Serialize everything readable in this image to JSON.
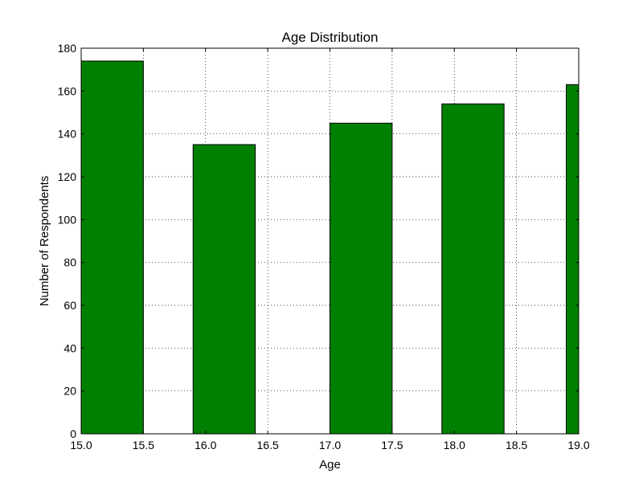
{
  "chart_data": {
    "type": "bar",
    "title": "Age Distribution",
    "xlabel": "Age",
    "ylabel": "Number of Respondents",
    "bar_width": 0.5,
    "series": [
      {
        "x": [
          15.0,
          15.9,
          17.0,
          17.9,
          18.9
        ],
        "values": [
          174,
          135,
          145,
          154,
          163
        ]
      }
    ],
    "xlim": [
      15.0,
      19.0
    ],
    "ylim": [
      0,
      180
    ],
    "xticks": [
      "15.0",
      "15.5",
      "16.0",
      "16.5",
      "17.0",
      "17.5",
      "18.0",
      "18.5",
      "19.0"
    ],
    "yticks": [
      "0",
      "20",
      "40",
      "60",
      "80",
      "100",
      "120",
      "140",
      "160",
      "180"
    ],
    "grid": true,
    "bar_color": "#008000",
    "edge_color": "#000000"
  }
}
